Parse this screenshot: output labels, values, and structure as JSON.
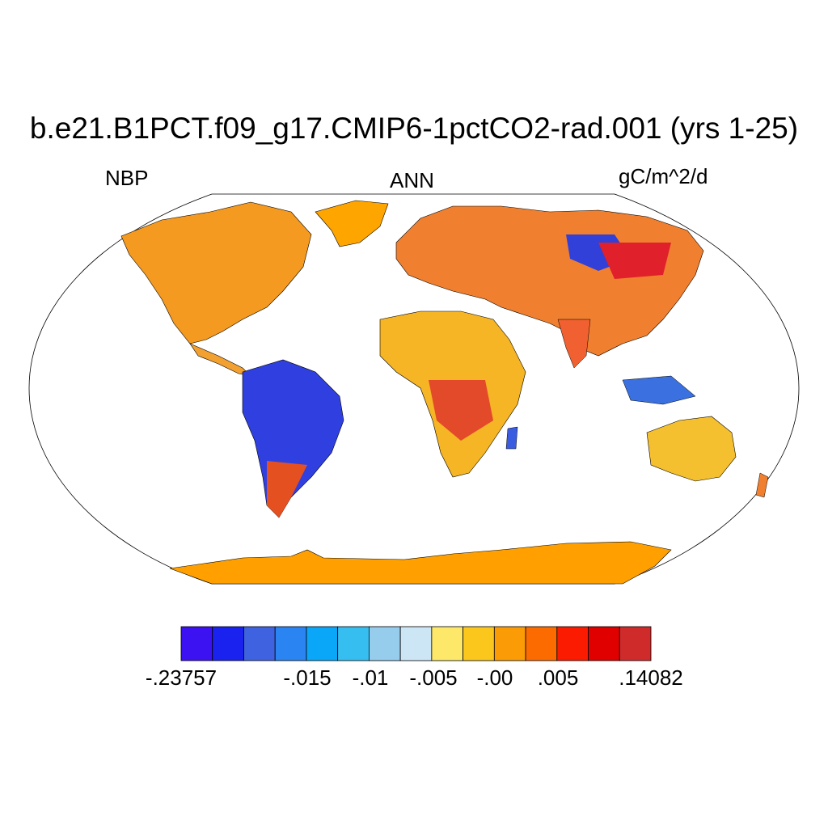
{
  "title": "b.e21.B1PCT.f09_g17.CMIP6-1pctCO2-rad.001 (yrs 1-25)",
  "variable": "NBP",
  "season": "ANN",
  "units": "gC/m^2/d",
  "projection": "Robinson",
  "colorbar": {
    "colors": [
      "#3d12f2",
      "#1a22f0",
      "#3f63e0",
      "#2a84f2",
      "#0aa6f8",
      "#36bef0",
      "#96cdec",
      "#cde6f6",
      "#fde86a",
      "#fbc71c",
      "#fb9c06",
      "#fb6b00",
      "#fb1b00",
      "#e00000",
      "#d02b2b"
    ],
    "labels": [
      ".23757",
      "-.015",
      "-.01",
      "-.005",
      "-.00",
      ".005",
      ".14082"
    ]
  }
}
